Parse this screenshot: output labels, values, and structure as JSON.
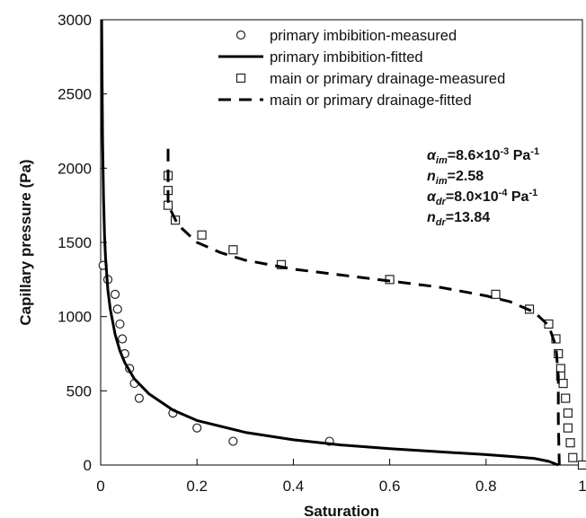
{
  "chart_data": {
    "type": "scatter",
    "title": "",
    "xlabel": "Saturation",
    "ylabel": "Capillary pressure (Pa)",
    "xlim": [
      0,
      1
    ],
    "ylim": [
      0,
      3000
    ],
    "xticks": [
      0,
      0.2,
      0.4,
      0.6,
      0.8,
      1
    ],
    "xtick_labels": [
      "0",
      "0.2",
      "0.4",
      "0.6",
      "0.8",
      "1"
    ],
    "yticks": [
      0,
      500,
      1000,
      1500,
      2000,
      2500,
      3000
    ],
    "ytick_labels": [
      "0",
      "500",
      "1000",
      "1500",
      "2000",
      "2500",
      "3000"
    ],
    "grid": false,
    "legend_position": "top-right",
    "series": [
      {
        "name": "primary imbibition-measured",
        "marker": "circle",
        "style": "points",
        "x": [
          0.005,
          0.015,
          0.03,
          0.035,
          0.04,
          0.045,
          0.05,
          0.06,
          0.07,
          0.08,
          0.15,
          0.2,
          0.275,
          0.475
        ],
        "y": [
          1345,
          1250,
          1150,
          1050,
          950,
          850,
          750,
          650,
          550,
          450,
          350,
          250,
          160,
          160
        ]
      },
      {
        "name": "primary imbibition-fitted",
        "style": "solid",
        "x": [
          0.002,
          0.003,
          0.004,
          0.006,
          0.008,
          0.01,
          0.015,
          0.02,
          0.03,
          0.04,
          0.05,
          0.07,
          0.1,
          0.15,
          0.2,
          0.3,
          0.4,
          0.5,
          0.6,
          0.7,
          0.8,
          0.85,
          0.9,
          0.93,
          0.95
        ],
        "y": [
          3000,
          2600,
          2200,
          1800,
          1550,
          1400,
          1180,
          1050,
          880,
          770,
          690,
          580,
          480,
          370,
          300,
          220,
          170,
          135,
          110,
          90,
          70,
          58,
          45,
          25,
          0
        ]
      },
      {
        "name": "main or primary drainage-measured",
        "marker": "square",
        "style": "points",
        "x": [
          0.14,
          0.14,
          0.14,
          0.155,
          0.21,
          0.275,
          0.375,
          0.6,
          0.82,
          0.89,
          0.93,
          0.945,
          0.95,
          0.955,
          0.955,
          0.96,
          0.965,
          0.97,
          0.97,
          0.975,
          0.98,
          1.0
        ],
        "y": [
          1950,
          1850,
          1750,
          1650,
          1550,
          1450,
          1350,
          1250,
          1150,
          1050,
          950,
          850,
          750,
          650,
          600,
          550,
          450,
          350,
          250,
          150,
          50,
          0
        ]
      },
      {
        "name": "main or primary drainage-fitted",
        "style": "dashed",
        "x": [
          0.14,
          0.14,
          0.14,
          0.145,
          0.16,
          0.2,
          0.25,
          0.3,
          0.4,
          0.5,
          0.6,
          0.7,
          0.8,
          0.85,
          0.9,
          0.93,
          0.945,
          0.95,
          0.95,
          0.952
        ],
        "y": [
          2130,
          1900,
          1780,
          1720,
          1620,
          1500,
          1430,
          1380,
          1320,
          1280,
          1240,
          1200,
          1140,
          1100,
          1030,
          940,
          800,
          600,
          300,
          0
        ]
      }
    ],
    "annotations": [
      {
        "symbol": "α",
        "sub": "im",
        "rest": "=8.6×10",
        "sup": "-3",
        "unit": " Pa",
        "unitsup": "-1"
      },
      {
        "symbol": "n",
        "sub": "im",
        "rest": "=2.58",
        "sup": "",
        "unit": "",
        "unitsup": ""
      },
      {
        "symbol": "α",
        "sub": "dr",
        "rest": "=8.0×10",
        "sup": "-4",
        "unit": " Pa",
        "unitsup": "-1"
      },
      {
        "symbol": "n",
        "sub": "dr",
        "rest": "=13.84",
        "sup": "",
        "unit": "",
        "unitsup": ""
      }
    ]
  }
}
